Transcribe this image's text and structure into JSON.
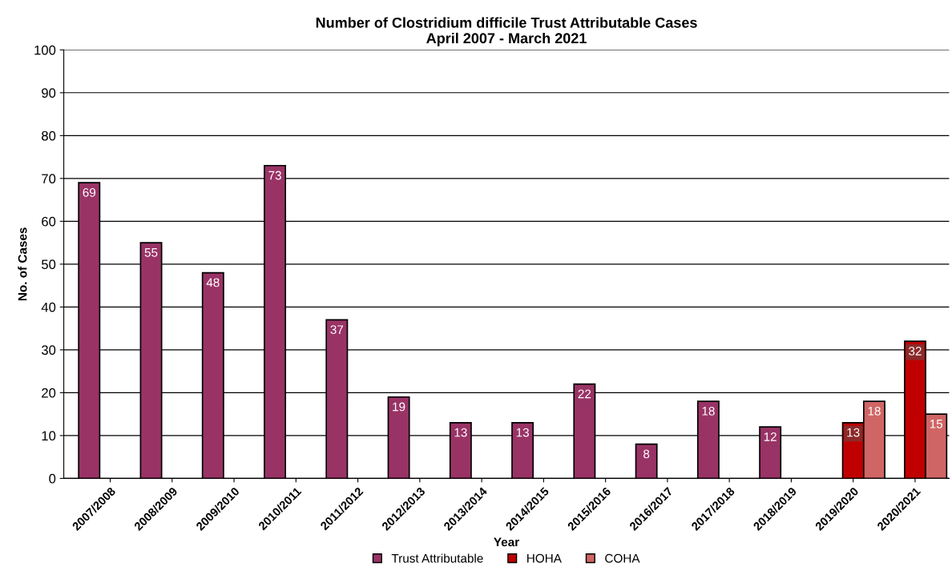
{
  "chart_data": {
    "type": "bar",
    "title": "Number of Clostridium difficile Trust Attributable Cases\nApril 2007 - March 2021",
    "xlabel": "Year",
    "ylabel": "No. of Cases",
    "categories": [
      "2007/2008",
      "2008/2009",
      "2009/2010",
      "2010/2011",
      "2011/2012",
      "2012/2013",
      "2013/2014",
      "2014/2015",
      "2015/2016",
      "2016/2017",
      "2017/2018",
      "2018/2019",
      "2019/2020",
      "2020/2021"
    ],
    "series": [
      {
        "name": "Trust Attributable",
        "color": "#993366",
        "values": [
          69,
          55,
          48,
          73,
          37,
          19,
          13,
          13,
          22,
          8,
          18,
          12,
          null,
          null
        ]
      },
      {
        "name": "HOHA",
        "color": "#c00000",
        "values": [
          null,
          null,
          null,
          null,
          null,
          null,
          null,
          null,
          null,
          null,
          null,
          null,
          13,
          32
        ]
      },
      {
        "name": "COHA",
        "color": "#d06565",
        "values": [
          null,
          null,
          null,
          null,
          null,
          null,
          null,
          null,
          null,
          null,
          null,
          null,
          18,
          15
        ]
      }
    ],
    "ylim": [
      0,
      100
    ],
    "yticks": [
      0,
      10,
      20,
      30,
      40,
      50,
      60,
      70,
      80,
      90,
      100
    ],
    "grid": "y",
    "legend": "bottom",
    "data_labels": true
  }
}
